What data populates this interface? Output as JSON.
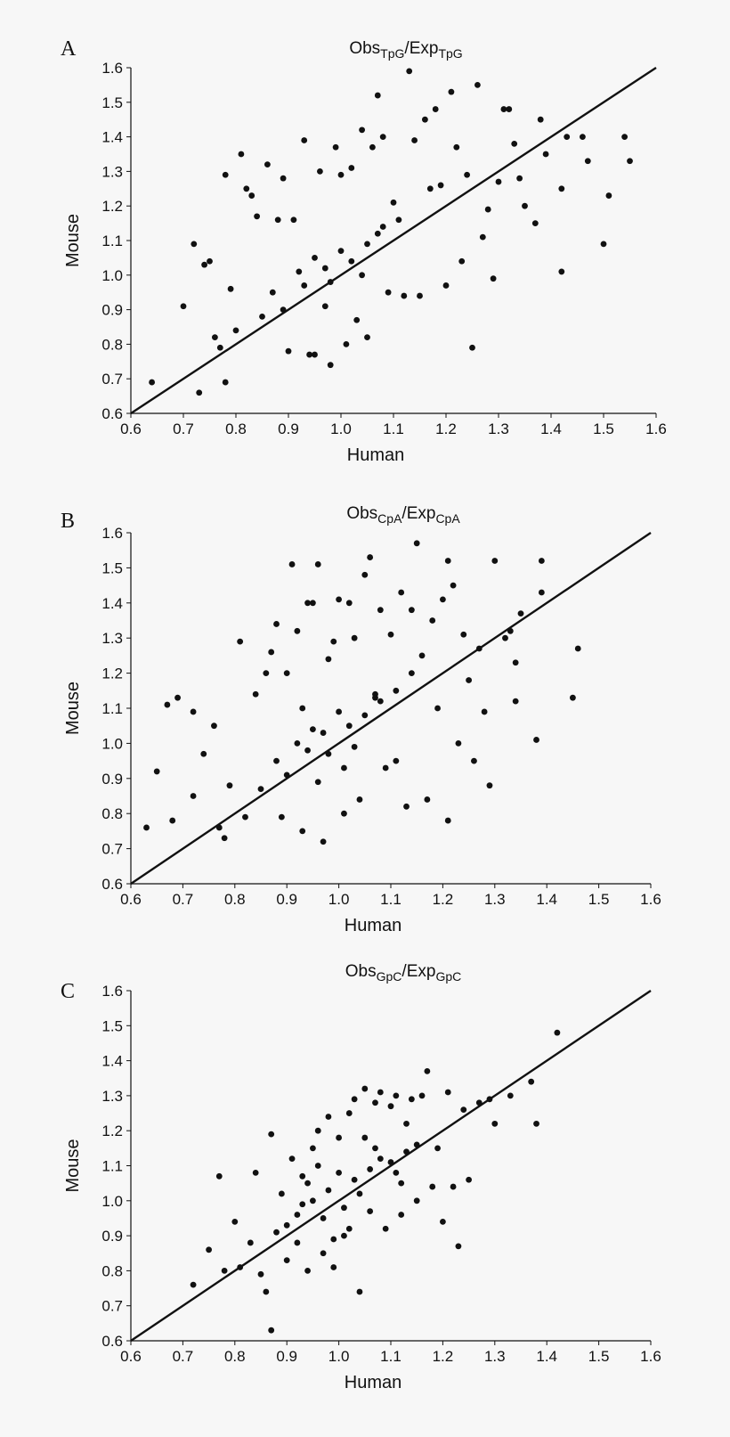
{
  "chart_data": [
    {
      "type": "scatter",
      "panel_letter": "A",
      "title": {
        "left": "Obs",
        "left_sub": "TpG",
        "sep": "/",
        "right": "Exp",
        "right_sub": "TpG"
      },
      "xlabel": "Human",
      "ylabel": "Mouse",
      "xlim": [
        0.6,
        1.6
      ],
      "ylim": [
        0.6,
        1.6
      ],
      "xticks": [
        "0.6",
        "0.7",
        "0.8",
        "0.9",
        "1.0",
        "1.1",
        "1.2",
        "1.3",
        "1.4",
        "1.5",
        "1.6"
      ],
      "yticks": [
        "0.6",
        "0.7",
        "0.8",
        "0.9",
        "1.0",
        "1.1",
        "1.2",
        "1.3",
        "1.4",
        "1.5",
        "1.6"
      ],
      "line": {
        "x": [
          0.6,
          1.6
        ],
        "y": [
          0.6,
          1.6
        ]
      },
      "grid": false,
      "points": [
        [
          0.64,
          0.69
        ],
        [
          0.7,
          0.91
        ],
        [
          0.72,
          1.09
        ],
        [
          0.73,
          0.66
        ],
        [
          0.74,
          1.03
        ],
        [
          0.75,
          1.04
        ],
        [
          0.76,
          0.82
        ],
        [
          0.77,
          0.79
        ],
        [
          0.78,
          0.69
        ],
        [
          0.78,
          1.29
        ],
        [
          0.79,
          0.96
        ],
        [
          0.8,
          0.84
        ],
        [
          0.81,
          1.35
        ],
        [
          0.82,
          1.25
        ],
        [
          0.83,
          1.23
        ],
        [
          0.84,
          1.17
        ],
        [
          0.86,
          1.32
        ],
        [
          0.88,
          1.16
        ],
        [
          0.89,
          1.28
        ],
        [
          0.9,
          0.78
        ],
        [
          0.91,
          1.16
        ],
        [
          0.93,
          1.39
        ],
        [
          0.94,
          0.77
        ],
        [
          0.95,
          0.77
        ],
        [
          0.96,
          1.3
        ],
        [
          0.97,
          0.91
        ],
        [
          0.98,
          0.74
        ],
        [
          0.99,
          1.37
        ],
        [
          1.0,
          1.29
        ],
        [
          1.01,
          0.8
        ],
        [
          1.02,
          1.31
        ],
        [
          1.03,
          0.87
        ],
        [
          1.04,
          1.42
        ],
        [
          1.05,
          0.82
        ],
        [
          1.06,
          1.37
        ],
        [
          1.07,
          1.52
        ],
        [
          1.08,
          1.4
        ],
        [
          1.09,
          0.95
        ],
        [
          1.1,
          1.21
        ],
        [
          1.12,
          0.94
        ],
        [
          1.13,
          1.59
        ],
        [
          1.14,
          1.39
        ],
        [
          1.15,
          0.94
        ],
        [
          1.16,
          1.45
        ],
        [
          1.17,
          1.25
        ],
        [
          1.18,
          1.48
        ],
        [
          1.19,
          1.26
        ],
        [
          1.2,
          0.97
        ],
        [
          1.21,
          1.53
        ],
        [
          1.22,
          1.37
        ],
        [
          1.23,
          1.04
        ],
        [
          1.24,
          1.29
        ],
        [
          1.25,
          0.79
        ],
        [
          1.26,
          1.55
        ],
        [
          1.27,
          1.11
        ],
        [
          1.28,
          1.19
        ],
        [
          1.29,
          0.99
        ],
        [
          1.3,
          1.27
        ],
        [
          1.31,
          1.48
        ],
        [
          1.32,
          1.48
        ],
        [
          1.33,
          1.38
        ],
        [
          1.34,
          1.28
        ],
        [
          1.35,
          1.2
        ],
        [
          1.37,
          1.15
        ],
        [
          1.38,
          1.45
        ],
        [
          1.39,
          1.35
        ],
        [
          1.42,
          1.01
        ],
        [
          1.42,
          1.25
        ],
        [
          1.43,
          1.4
        ],
        [
          1.46,
          1.4
        ],
        [
          1.47,
          1.33
        ],
        [
          1.5,
          1.09
        ],
        [
          1.51,
          1.23
        ],
        [
          1.54,
          1.4
        ],
        [
          1.55,
          1.33
        ],
        [
          0.87,
          0.95
        ],
        [
          0.92,
          1.01
        ],
        [
          0.95,
          1.05
        ],
        [
          0.98,
          0.98
        ],
        [
          1.02,
          1.04
        ],
        [
          1.05,
          1.09
        ],
        [
          1.07,
          1.12
        ],
        [
          1.11,
          1.16
        ],
        [
          0.89,
          0.9
        ],
        [
          0.93,
          0.97
        ],
        [
          0.97,
          1.02
        ],
        [
          1.0,
          1.07
        ],
        [
          1.04,
          1.0
        ],
        [
          1.08,
          1.14
        ],
        [
          0.85,
          0.88
        ]
      ]
    },
    {
      "type": "scatter",
      "panel_letter": "B",
      "title": {
        "left": "Obs",
        "left_sub": "CpA",
        "sep": "/",
        "right": "Exp",
        "right_sub": "CpA"
      },
      "xlabel": "Human",
      "ylabel": "Mouse",
      "xlim": [
        0.6,
        1.6
      ],
      "ylim": [
        0.6,
        1.6
      ],
      "xticks": [
        "0.6",
        "0.7",
        "0.8",
        "0.9",
        "1.0",
        "1.1",
        "1.2",
        "1.3",
        "1.4",
        "1.5",
        "1.6"
      ],
      "yticks": [
        "0.6",
        "0.7",
        "0.8",
        "0.9",
        "1.0",
        "1.1",
        "1.2",
        "1.3",
        "1.4",
        "1.5",
        "1.6"
      ],
      "line": {
        "x": [
          0.6,
          1.6
        ],
        "y": [
          0.6,
          1.6
        ]
      },
      "grid": false,
      "points": [
        [
          0.63,
          0.76
        ],
        [
          0.65,
          0.92
        ],
        [
          0.67,
          1.11
        ],
        [
          0.68,
          0.78
        ],
        [
          0.69,
          1.13
        ],
        [
          0.72,
          1.09
        ],
        [
          0.72,
          0.85
        ],
        [
          0.74,
          0.97
        ],
        [
          0.76,
          1.05
        ],
        [
          0.77,
          0.76
        ],
        [
          0.78,
          0.73
        ],
        [
          0.79,
          0.88
        ],
        [
          0.81,
          1.29
        ],
        [
          0.82,
          0.79
        ],
        [
          0.84,
          1.14
        ],
        [
          0.86,
          1.2
        ],
        [
          0.87,
          1.26
        ],
        [
          0.88,
          1.34
        ],
        [
          0.89,
          0.79
        ],
        [
          0.9,
          1.2
        ],
        [
          0.91,
          1.51
        ],
        [
          0.92,
          1.32
        ],
        [
          0.93,
          0.75
        ],
        [
          0.94,
          1.4
        ],
        [
          0.95,
          1.4
        ],
        [
          0.96,
          1.51
        ],
        [
          0.97,
          0.72
        ],
        [
          0.98,
          1.24
        ],
        [
          0.99,
          1.29
        ],
        [
          1.0,
          1.41
        ],
        [
          1.01,
          0.8
        ],
        [
          1.02,
          1.4
        ],
        [
          1.03,
          1.3
        ],
        [
          1.04,
          0.84
        ],
        [
          1.05,
          1.48
        ],
        [
          1.06,
          1.53
        ],
        [
          1.07,
          1.13
        ],
        [
          1.08,
          1.38
        ],
        [
          1.09,
          0.93
        ],
        [
          1.1,
          1.31
        ],
        [
          1.11,
          0.95
        ],
        [
          1.12,
          1.43
        ],
        [
          1.13,
          0.82
        ],
        [
          1.14,
          1.38
        ],
        [
          1.15,
          1.57
        ],
        [
          1.16,
          1.25
        ],
        [
          1.17,
          0.84
        ],
        [
          1.18,
          1.35
        ],
        [
          1.19,
          1.1
        ],
        [
          1.2,
          1.41
        ],
        [
          1.21,
          0.78
        ],
        [
          1.21,
          1.52
        ],
        [
          1.22,
          1.45
        ],
        [
          1.23,
          1.0
        ],
        [
          1.24,
          1.31
        ],
        [
          1.25,
          1.18
        ],
        [
          1.26,
          0.95
        ],
        [
          1.27,
          1.27
        ],
        [
          1.28,
          1.09
        ],
        [
          1.29,
          0.88
        ],
        [
          1.3,
          1.52
        ],
        [
          1.32,
          1.3
        ],
        [
          1.33,
          1.32
        ],
        [
          1.34,
          1.12
        ],
        [
          1.34,
          1.23
        ],
        [
          1.35,
          1.37
        ],
        [
          1.38,
          1.01
        ],
        [
          1.39,
          1.52
        ],
        [
          1.39,
          1.43
        ],
        [
          1.45,
          1.13
        ],
        [
          1.46,
          1.27
        ],
        [
          0.88,
          0.95
        ],
        [
          0.92,
          1.0
        ],
        [
          0.95,
          1.04
        ],
        [
          0.98,
          0.97
        ],
        [
          1.02,
          1.05
        ],
        [
          1.05,
          1.08
        ],
        [
          1.08,
          1.12
        ],
        [
          1.11,
          1.15
        ],
        [
          0.9,
          0.91
        ],
        [
          0.94,
          0.98
        ],
        [
          0.97,
          1.03
        ],
        [
          1.0,
          1.09
        ],
        [
          1.03,
          0.99
        ],
        [
          1.07,
          1.14
        ],
        [
          0.85,
          0.87
        ],
        [
          1.14,
          1.2
        ],
        [
          0.93,
          1.1
        ],
        [
          1.01,
          0.93
        ],
        [
          0.96,
          0.89
        ]
      ]
    },
    {
      "type": "scatter",
      "panel_letter": "C",
      "title": {
        "left": "Obs",
        "left_sub": "GpC",
        "sep": "/",
        "right": "Exp",
        "right_sub": "GpC"
      },
      "xlabel": "Human",
      "ylabel": "Mouse",
      "xlim": [
        0.6,
        1.6
      ],
      "ylim": [
        0.6,
        1.6
      ],
      "xticks": [
        "0.6",
        "0.7",
        "0.8",
        "0.9",
        "1.0",
        "1.1",
        "1.2",
        "1.3",
        "1.4",
        "1.5",
        "1.6"
      ],
      "yticks": [
        "0.6",
        "0.7",
        "0.8",
        "0.9",
        "1.0",
        "1.1",
        "1.2",
        "1.3",
        "1.4",
        "1.5",
        "1.6"
      ],
      "line": {
        "x": [
          0.6,
          1.6
        ],
        "y": [
          0.6,
          1.6
        ]
      },
      "grid": false,
      "points": [
        [
          0.72,
          0.76
        ],
        [
          0.75,
          0.86
        ],
        [
          0.77,
          1.07
        ],
        [
          0.78,
          0.8
        ],
        [
          0.8,
          0.94
        ],
        [
          0.81,
          0.81
        ],
        [
          0.83,
          0.88
        ],
        [
          0.84,
          1.08
        ],
        [
          0.85,
          0.79
        ],
        [
          0.86,
          0.74
        ],
        [
          0.87,
          0.63
        ],
        [
          0.87,
          1.19
        ],
        [
          0.88,
          0.91
        ],
        [
          0.89,
          1.02
        ],
        [
          0.9,
          0.83
        ],
        [
          0.91,
          1.12
        ],
        [
          0.92,
          0.88
        ],
        [
          0.93,
          1.07
        ],
        [
          0.94,
          0.8
        ],
        [
          0.95,
          1.15
        ],
        [
          0.96,
          1.2
        ],
        [
          0.97,
          0.85
        ],
        [
          0.98,
          1.24
        ],
        [
          0.99,
          0.81
        ],
        [
          1.0,
          1.18
        ],
        [
          1.01,
          0.9
        ],
        [
          1.02,
          1.25
        ],
        [
          1.03,
          1.29
        ],
        [
          1.04,
          0.74
        ],
        [
          1.05,
          1.32
        ],
        [
          1.06,
          0.97
        ],
        [
          1.07,
          1.28
        ],
        [
          1.08,
          1.31
        ],
        [
          1.09,
          0.92
        ],
        [
          1.1,
          1.27
        ],
        [
          1.11,
          1.3
        ],
        [
          1.12,
          0.96
        ],
        [
          1.13,
          1.22
        ],
        [
          1.14,
          1.29
        ],
        [
          1.15,
          1.0
        ],
        [
          1.16,
          1.3
        ],
        [
          1.17,
          1.37
        ],
        [
          1.18,
          1.04
        ],
        [
          1.19,
          1.15
        ],
        [
          1.2,
          0.94
        ],
        [
          1.21,
          1.31
        ],
        [
          1.22,
          1.04
        ],
        [
          1.23,
          0.87
        ],
        [
          1.24,
          1.26
        ],
        [
          1.25,
          1.06
        ],
        [
          1.27,
          1.28
        ],
        [
          1.29,
          1.29
        ],
        [
          1.3,
          1.22
        ],
        [
          1.33,
          1.3
        ],
        [
          1.37,
          1.34
        ],
        [
          1.38,
          1.22
        ],
        [
          1.42,
          1.48
        ],
        [
          0.92,
          0.96
        ],
        [
          0.95,
          1.0
        ],
        [
          0.98,
          1.03
        ],
        [
          1.01,
          0.98
        ],
        [
          1.03,
          1.06
        ],
        [
          1.06,
          1.09
        ],
        [
          1.08,
          1.12
        ],
        [
          1.11,
          1.08
        ],
        [
          1.13,
          1.14
        ],
        [
          0.9,
          0.93
        ],
        [
          0.94,
          1.05
        ],
        [
          0.97,
          0.95
        ],
        [
          1.0,
          1.08
        ],
        [
          1.04,
          1.02
        ],
        [
          1.07,
          1.15
        ],
        [
          1.1,
          1.11
        ],
        [
          1.15,
          1.16
        ],
        [
          0.96,
          1.1
        ],
        [
          1.02,
          0.92
        ],
        [
          0.99,
          0.89
        ],
        [
          1.05,
          1.18
        ],
        [
          1.12,
          1.05
        ],
        [
          0.93,
          0.99
        ]
      ]
    }
  ]
}
